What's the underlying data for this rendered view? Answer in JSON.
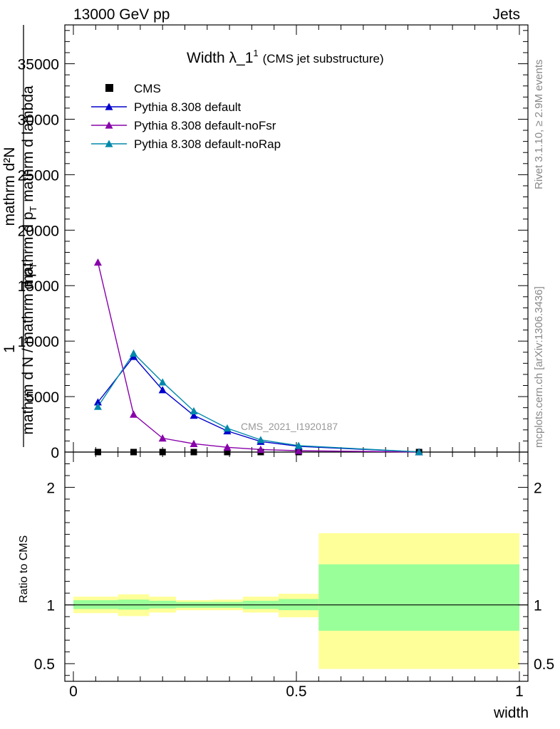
{
  "header": {
    "left": "13000 GeV pp",
    "right": "Jets"
  },
  "side_labels": {
    "rivet": "Rivet 3.1.10, ≥ 2.9M events",
    "mcplots": "mcplots.cern.ch [arXiv:1306.3436]"
  },
  "chart_data": [
    {
      "type": "line",
      "title": "Width λ_1",
      "title_sup": "1",
      "subtitle": "(CMS jet substructure)",
      "watermark": "CMS_2021_I1920187",
      "ylabel_lines": [
        "mathrm d²N",
        "mathrm d p_T mathrm d lambda",
        "1",
        "mathrm d N / mathrm d p_T"
      ],
      "ylabel_display": {
        "numerator": "mathrm d²N",
        "denominator": "mathrm d p",
        "denominator_sub": "T",
        "denominator_tail": " mathrm d lambda",
        "prefactor": "1",
        "prefactor_den": "mathrm d N / mathrm d p",
        "prefactor_sub": "T"
      },
      "xlim": [
        0,
        1
      ],
      "ylim": [
        0,
        38500
      ],
      "yticks": [
        0,
        5000,
        10000,
        15000,
        20000,
        25000,
        30000,
        35000
      ],
      "ytick_labels": [
        "0",
        "5000",
        "10000",
        "15000",
        "20000",
        "25000",
        "30000",
        "35000"
      ],
      "legend_position": "top-left",
      "series": [
        {
          "name": "CMS",
          "marker": "square",
          "color": "#000000",
          "x": [
            0.055,
            0.135,
            0.2,
            0.27,
            0.345,
            0.42,
            0.505,
            0.775
          ],
          "values": [
            0,
            0,
            0,
            0,
            0,
            0,
            0,
            0
          ]
        },
        {
          "name": "Pythia 8.308 default",
          "marker": "triangle",
          "color": "#0000cc",
          "x": [
            0.055,
            0.135,
            0.2,
            0.27,
            0.345,
            0.42,
            0.505,
            0.775
          ],
          "values": [
            4500,
            8600,
            5600,
            3300,
            1900,
            950,
            520,
            10
          ]
        },
        {
          "name": "Pythia 8.308 default-noFsr",
          "marker": "triangle",
          "color": "#8800aa",
          "x": [
            0.055,
            0.135,
            0.2,
            0.27,
            0.345,
            0.42,
            0.505,
            0.775
          ],
          "values": [
            17100,
            3400,
            1250,
            750,
            430,
            230,
            120,
            5
          ]
        },
        {
          "name": "Pythia 8.308 default-noRap",
          "marker": "triangle",
          "color": "#0088aa",
          "x": [
            0.055,
            0.135,
            0.2,
            0.27,
            0.345,
            0.42,
            0.505,
            0.775
          ],
          "values": [
            4100,
            8900,
            6300,
            3700,
            2150,
            1100,
            580,
            12
          ]
        }
      ]
    },
    {
      "type": "area",
      "ylabel": "Ratio to CMS",
      "xlabel": "width",
      "xlim": [
        0,
        1
      ],
      "ylim": [
        0.35,
        2.3
      ],
      "xticks": [
        0,
        0.5,
        1
      ],
      "xtick_labels": [
        "0",
        "0.5",
        "1"
      ],
      "yticks": [
        0.5,
        1,
        2
      ],
      "ytick_labels": [
        "0.5",
        "1",
        "2"
      ],
      "reference_line": 1,
      "bands": [
        {
          "x0": 0.0,
          "x1": 0.1,
          "stat_low": 0.965,
          "stat_high": 1.04,
          "tot_low": 0.93,
          "tot_high": 1.07
        },
        {
          "x0": 0.1,
          "x1": 0.17,
          "stat_low": 0.96,
          "stat_high": 1.045,
          "tot_low": 0.905,
          "tot_high": 1.09
        },
        {
          "x0": 0.17,
          "x1": 0.23,
          "stat_low": 0.97,
          "stat_high": 1.035,
          "tot_low": 0.935,
          "tot_high": 1.07
        },
        {
          "x0": 0.23,
          "x1": 0.31,
          "stat_low": 0.975,
          "stat_high": 1.025,
          "tot_low": 0.955,
          "tot_high": 1.04
        },
        {
          "x0": 0.31,
          "x1": 0.38,
          "stat_low": 0.975,
          "stat_high": 1.025,
          "tot_low": 0.955,
          "tot_high": 1.045
        },
        {
          "x0": 0.38,
          "x1": 0.46,
          "stat_low": 0.965,
          "stat_high": 1.035,
          "tot_low": 0.935,
          "tot_high": 1.07
        },
        {
          "x0": 0.46,
          "x1": 0.55,
          "stat_low": 0.955,
          "stat_high": 1.05,
          "tot_low": 0.895,
          "tot_high": 1.095
        },
        {
          "x0": 0.55,
          "x1": 1.0,
          "stat_low": 0.78,
          "stat_high": 1.345,
          "tot_low": 0.455,
          "tot_high": 1.61
        }
      ],
      "colors": {
        "stat": "#99ff99",
        "total": "#ffff99"
      }
    }
  ]
}
